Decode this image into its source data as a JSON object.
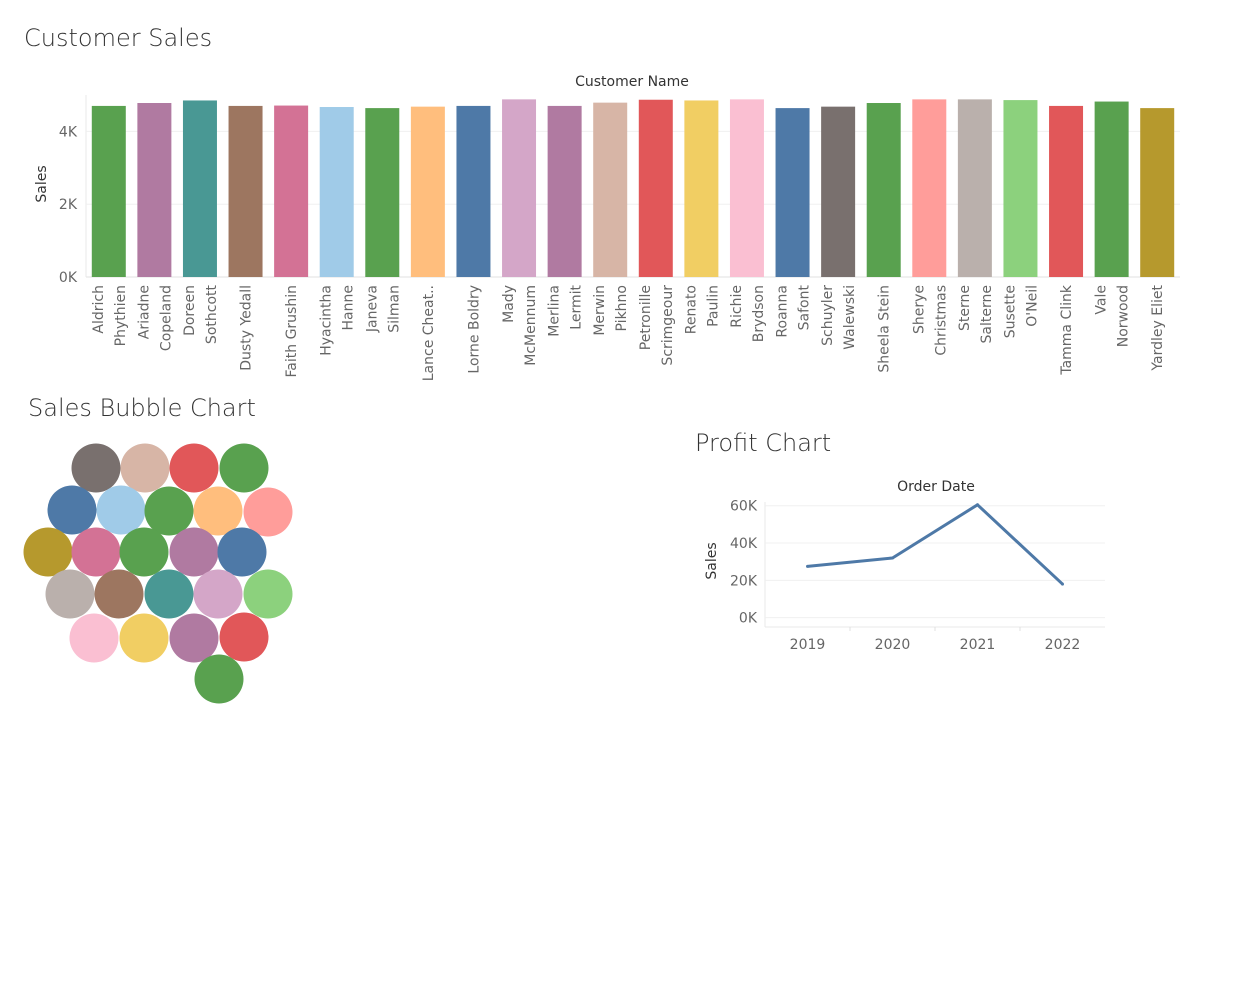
{
  "dashboard": {
    "customer_sales_title": "Customer Sales",
    "bubble_title": "Sales Bubble Chart",
    "profit_title": "Profit Chart"
  },
  "chart_data": [
    {
      "type": "bar",
      "header": "Customer Name",
      "ylabel": "Sales",
      "ylim": [
        0,
        5000
      ],
      "yticks": [
        "0K",
        "2K",
        "4K"
      ],
      "ytick_values": [
        0,
        2000,
        4000
      ],
      "grid": true,
      "categories": [
        [
          "Aldrich",
          "Phythien"
        ],
        [
          "Ariadne",
          "Copeland"
        ],
        [
          "Doreen",
          "Sothcott"
        ],
        [
          "Dusty Yedall"
        ],
        [
          "Faith Grushin"
        ],
        [
          "Hyacintha",
          "Hanne"
        ],
        [
          "Janeva",
          "Silman"
        ],
        [
          "Lance Cheat.."
        ],
        [
          "Lorne Boldry"
        ],
        [
          "Mady",
          "McMennum"
        ],
        [
          "Merlina",
          "Lermit"
        ],
        [
          "Merwin",
          "Pikhno"
        ],
        [
          "Petronille",
          "Scrimgeour"
        ],
        [
          "Renato",
          "Paulin"
        ],
        [
          "Richie",
          "Brydson"
        ],
        [
          "Roanna",
          "Safont"
        ],
        [
          "Schuyler",
          "Walewski"
        ],
        [
          "Sheela Stein"
        ],
        [
          "Sherye",
          "Christmas"
        ],
        [
          "Sterne",
          "Salterne"
        ],
        [
          "Susette",
          "O'Neil"
        ],
        [
          "Tamma Clink"
        ],
        [
          "Vale",
          "Norwood"
        ],
        [
          "Yardley Eliet"
        ]
      ],
      "values": [
        4700,
        4780,
        4850,
        4700,
        4710,
        4670,
        4640,
        4680,
        4700,
        4880,
        4700,
        4790,
        4870,
        4850,
        4880,
        4640,
        4680,
        4780,
        4880,
        4880,
        4860,
        4700,
        4820,
        4640
      ],
      "colors": [
        "#59a14f",
        "#b07aa1",
        "#499894",
        "#9d7660",
        "#d37295",
        "#a0cbe8",
        "#59a14f",
        "#ffbe7d",
        "#4e79a7",
        "#d4a6c8",
        "#b07aa1",
        "#d7b5a6",
        "#e15759",
        "#f1ce63",
        "#fabfd2",
        "#4e79a7",
        "#79706e",
        "#59a14f",
        "#ff9d9a",
        "#bab0ac",
        "#8cd17d",
        "#e15759",
        "#59a14f",
        "#b6992d"
      ]
    },
    {
      "type": "bubble",
      "colors": [
        "#79706e",
        "#d7b5a6",
        "#e15759",
        "#59a14f",
        "#4e79a7",
        "#a0cbe8",
        "#59a14f",
        "#ffbe7d",
        "#ff9d9a",
        "#b6992d",
        "#d37295",
        "#59a14f",
        "#b07aa1",
        "#4e79a7",
        "#bab0ac",
        "#9d7660",
        "#499894",
        "#d4a6c8",
        "#8cd17d",
        "#fabfd2",
        "#f1ce63",
        "#b07aa1",
        "#e15759",
        "#59a14f"
      ]
    },
    {
      "type": "line",
      "header": "Order Date",
      "ylabel": "Sales",
      "x": [
        "2019",
        "2020",
        "2021",
        "2022"
      ],
      "values": [
        27500,
        32000,
        60500,
        18000
      ],
      "ylim": [
        -5000,
        62000
      ],
      "yticks": [
        "0K",
        "20K",
        "40K",
        "60K"
      ],
      "ytick_values": [
        0,
        20000,
        40000,
        60000
      ],
      "color": "#4e79a7",
      "grid": true
    }
  ]
}
